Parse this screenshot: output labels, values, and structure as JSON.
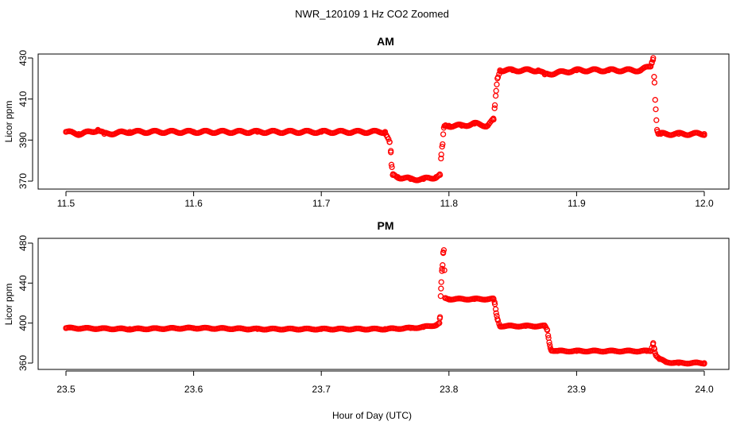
{
  "figure": {
    "title": "NWR_120109  1 Hz CO2 Zoomed",
    "xlabel": "Hour of Day (UTC)"
  },
  "chart_data": [
    {
      "type": "scatter",
      "title": "AM",
      "xlabel": "Hour of Day (UTC)",
      "ylabel": "Licor ppm",
      "xlim": [
        11.5,
        12.0
      ],
      "ylim": [
        370,
        430
      ],
      "xticks": [
        "11.5",
        "11.6",
        "11.7",
        "11.8",
        "11.9",
        "12.0"
      ],
      "yticks": [
        "370",
        "390",
        "410",
        "430"
      ],
      "marker": "open-circle",
      "color": "#ff0000",
      "series": [
        {
          "x": [
            11.5,
            11.51,
            11.52,
            11.525,
            11.53,
            11.55,
            11.6,
            11.65,
            11.7,
            11.75,
            11.7535,
            11.7545,
            11.755,
            11.756,
            11.76,
            11.77,
            11.78,
            11.79,
            11.793,
            11.794,
            11.795,
            11.796,
            11.797,
            11.8,
            11.81,
            11.82,
            11.83,
            11.835,
            11.836,
            11.837,
            11.838,
            11.84,
            11.85,
            11.87,
            11.875,
            11.9,
            11.925,
            11.95,
            11.958,
            11.959,
            11.96,
            11.961,
            11.962,
            11.963,
            11.964,
            11.966,
            11.97,
            11.98,
            12.0
          ],
          "y": [
            394,
            393,
            394,
            395,
            393,
            394,
            394,
            394,
            394,
            394,
            389,
            384,
            378,
            373,
            372,
            371,
            371,
            372,
            373,
            383,
            388,
            396,
            397,
            397,
            397,
            398,
            397,
            400,
            407,
            414,
            420,
            424,
            424,
            424,
            422,
            424,
            424,
            424,
            426,
            428,
            430,
            418,
            405,
            395,
            393,
            393,
            393,
            393,
            393
          ]
        }
      ]
    },
    {
      "type": "scatter",
      "title": "PM",
      "xlabel": "Hour of Day (UTC)",
      "ylabel": "Licor ppm",
      "xlim": [
        23.5,
        24.0
      ],
      "ylim": [
        360,
        480
      ],
      "xticks": [
        "23.5",
        "23.6",
        "23.7",
        "23.8",
        "23.9",
        "24.0"
      ],
      "yticks": [
        "360",
        "400",
        "440",
        "480"
      ],
      "marker": "open-circle",
      "color": "#ff0000",
      "series": [
        {
          "x": [
            23.5,
            23.55,
            23.6,
            23.65,
            23.7,
            23.75,
            23.77,
            23.78,
            23.79,
            23.7925,
            23.793,
            23.7935,
            23.794,
            23.7945,
            23.795,
            23.7955,
            23.796,
            23.797,
            23.8,
            23.82,
            23.835,
            23.836,
            23.837,
            23.838,
            23.84,
            23.86,
            23.875,
            23.877,
            23.878,
            23.879,
            23.88,
            23.885,
            23.9,
            23.93,
            23.955,
            23.958,
            23.96,
            23.961,
            23.962,
            23.965,
            23.97,
            23.98,
            24.0
          ],
          "y": [
            395,
            394,
            395,
            394,
            394,
            394,
            395,
            396,
            398,
            400,
            406,
            427,
            441,
            452,
            458,
            470,
            473,
            425,
            424,
            424,
            424,
            419,
            410,
            404,
            397,
            397,
            397,
            393,
            385,
            378,
            373,
            372,
            372,
            372,
            372,
            372,
            380,
            374,
            368,
            364,
            361,
            360,
            360
          ]
        }
      ]
    }
  ]
}
